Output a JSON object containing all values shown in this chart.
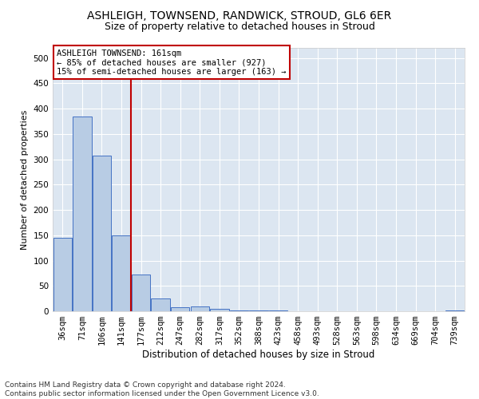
{
  "title1": "ASHLEIGH, TOWNSEND, RANDWICK, STROUD, GL6 6ER",
  "title2": "Size of property relative to detached houses in Stroud",
  "xlabel": "Distribution of detached houses by size in Stroud",
  "ylabel": "Number of detached properties",
  "categories": [
    "36sqm",
    "71sqm",
    "106sqm",
    "141sqm",
    "177sqm",
    "212sqm",
    "247sqm",
    "282sqm",
    "317sqm",
    "352sqm",
    "388sqm",
    "423sqm",
    "458sqm",
    "493sqm",
    "528sqm",
    "563sqm",
    "598sqm",
    "634sqm",
    "669sqm",
    "704sqm",
    "739sqm"
  ],
  "values": [
    145,
    385,
    307,
    150,
    72,
    25,
    8,
    9,
    4,
    2,
    2,
    1,
    0,
    0,
    0,
    0,
    0,
    0,
    0,
    0,
    2
  ],
  "bar_color": "#b8cce4",
  "bar_edge_color": "#4472c4",
  "vline_color": "#c00000",
  "annotation_text": "ASHLEIGH TOWNSEND: 161sqm\n← 85% of detached houses are smaller (927)\n15% of semi-detached houses are larger (163) →",
  "annotation_box_color": "#c00000",
  "ylim": [
    0,
    520
  ],
  "yticks": [
    0,
    50,
    100,
    150,
    200,
    250,
    300,
    350,
    400,
    450,
    500
  ],
  "background_color": "#dce6f1",
  "grid_color": "#ffffff",
  "footer_line1": "Contains HM Land Registry data © Crown copyright and database right 2024.",
  "footer_line2": "Contains public sector information licensed under the Open Government Licence v3.0.",
  "title1_fontsize": 10,
  "title2_fontsize": 9,
  "xlabel_fontsize": 8.5,
  "ylabel_fontsize": 8,
  "tick_fontsize": 7.5,
  "annotation_fontsize": 7.5,
  "footer_fontsize": 6.5,
  "vline_bar_index": 3.5
}
